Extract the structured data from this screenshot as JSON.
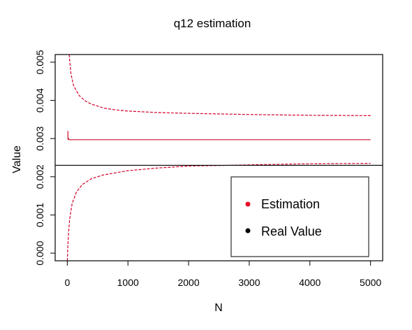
{
  "chart_data": {
    "type": "line",
    "title": "q12 estimation",
    "xlabel": "N",
    "ylabel": "Value",
    "xlim": [
      -200,
      5200
    ],
    "ylim": [
      -0.0002,
      0.0052
    ],
    "x_ticks": [
      0,
      1000,
      2000,
      3000,
      4000,
      5000
    ],
    "x_tick_labels": [
      "0",
      "1000",
      "2000",
      "3000",
      "4000",
      "5000"
    ],
    "y_ticks": [
      0.0,
      0.001,
      0.002,
      0.003,
      0.004,
      0.005
    ],
    "y_tick_labels": [
      "0.000",
      "0.001",
      "0.002",
      "0.003",
      "0.004",
      "0.005"
    ],
    "reference_line_y": 0.0023,
    "grid": false,
    "legend_position": "bottom-right",
    "legend": [
      {
        "label": "Estimation",
        "color": "#e8102a"
      },
      {
        "label": "Real Value",
        "color": "#000000"
      }
    ],
    "series": [
      {
        "role": "upper-bound",
        "style": "dashed",
        "color": "#d4002a",
        "points": [
          [
            30,
            0.0052
          ],
          [
            60,
            0.0047
          ],
          [
            100,
            0.0044
          ],
          [
            150,
            0.00425
          ],
          [
            200,
            0.00412
          ],
          [
            300,
            0.00398
          ],
          [
            400,
            0.0039
          ],
          [
            600,
            0.0038
          ],
          [
            800,
            0.00375
          ],
          [
            1000,
            0.00372
          ],
          [
            1500,
            0.00368
          ],
          [
            2000,
            0.00366
          ],
          [
            3000,
            0.00363
          ],
          [
            4000,
            0.00361
          ],
          [
            5000,
            0.0036
          ]
        ]
      },
      {
        "role": "estimate",
        "style": "solid",
        "color": "#c8102e",
        "points": [
          [
            10,
            0.0032
          ],
          [
            12,
            0.00297
          ],
          [
            20,
            0.003
          ],
          [
            30,
            0.00297
          ],
          [
            5000,
            0.00297
          ]
        ]
      },
      {
        "role": "lower-bound",
        "style": "dashed",
        "color": "#d4002a",
        "points": [
          [
            0,
            -0.0002
          ],
          [
            10,
            0.0002
          ],
          [
            20,
            0.0005
          ],
          [
            40,
            0.0009
          ],
          [
            80,
            0.0013
          ],
          [
            150,
            0.0016
          ],
          [
            250,
            0.0018
          ],
          [
            400,
            0.00195
          ],
          [
            600,
            0.00205
          ],
          [
            1000,
            0.00216
          ],
          [
            1500,
            0.00223
          ],
          [
            2000,
            0.00228
          ],
          [
            2700,
            0.0023
          ],
          [
            3300,
            0.00232
          ],
          [
            4000,
            0.00234
          ],
          [
            5000,
            0.00235
          ]
        ]
      }
    ]
  }
}
